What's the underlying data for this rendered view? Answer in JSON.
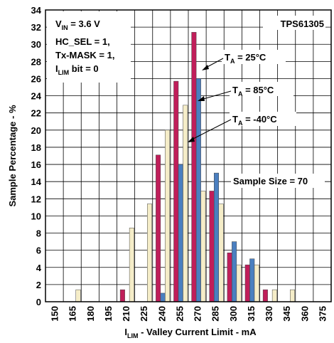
{
  "chart_data": {
    "type": "bar",
    "title": "",
    "xlabel_main": "I",
    "xlabel_sub": "LIM",
    "xlabel_rest": " - Valley Current Limit - mA",
    "ylabel": "Sample Percentage - %",
    "ylim": [
      0,
      34
    ],
    "y_ticks": [
      0,
      2,
      4,
      6,
      8,
      10,
      12,
      14,
      16,
      18,
      20,
      22,
      24,
      26,
      28,
      30,
      32,
      34
    ],
    "categories": [
      "150",
      "165",
      "180",
      "195",
      "210",
      "225",
      "240",
      "255",
      "270",
      "285",
      "300",
      "315",
      "330",
      "345",
      "360",
      "375"
    ],
    "grid": true,
    "series": [
      {
        "name": "T_A = 25°C",
        "color": "#c01e5a",
        "values": [
          0,
          0,
          0,
          0,
          1.4,
          0,
          17.1,
          25.7,
          31.4,
          12.9,
          5.7,
          4.3,
          1.4,
          0,
          0,
          0
        ]
      },
      {
        "name": "T_A = 85°C",
        "color": "#4a7fc0",
        "values": [
          0,
          0,
          0,
          0,
          0,
          0,
          1.0,
          16.0,
          26.0,
          15.0,
          7.0,
          5.0,
          0,
          0,
          0,
          0
        ]
      },
      {
        "name": "T_A = -40°C",
        "color": "#f5edc8",
        "values": [
          0,
          1.4,
          0,
          0,
          8.6,
          11.4,
          20.0,
          22.9,
          12.9,
          11.4,
          4.3,
          4.3,
          1.4,
          1.4,
          0,
          0
        ]
      }
    ],
    "annotations": {
      "vin_main": "V",
      "vin_sub": "IN",
      "vin_rest": " = 3.6 V",
      "device": "TPS61305",
      "cond1": "HC_SEL = 1,",
      "cond2": "Tx-MASK = 1,",
      "cond3_main": "I",
      "cond3_sub": "LIM",
      "cond3_rest": " bit = 0",
      "ta_prefix": "T",
      "ta_sub": "A",
      "ta25_rest": " = 25°C",
      "ta85_rest": " = 85°C",
      "tam40_rest": " = -40°C",
      "sample_size": "Sample Size = 70"
    }
  }
}
